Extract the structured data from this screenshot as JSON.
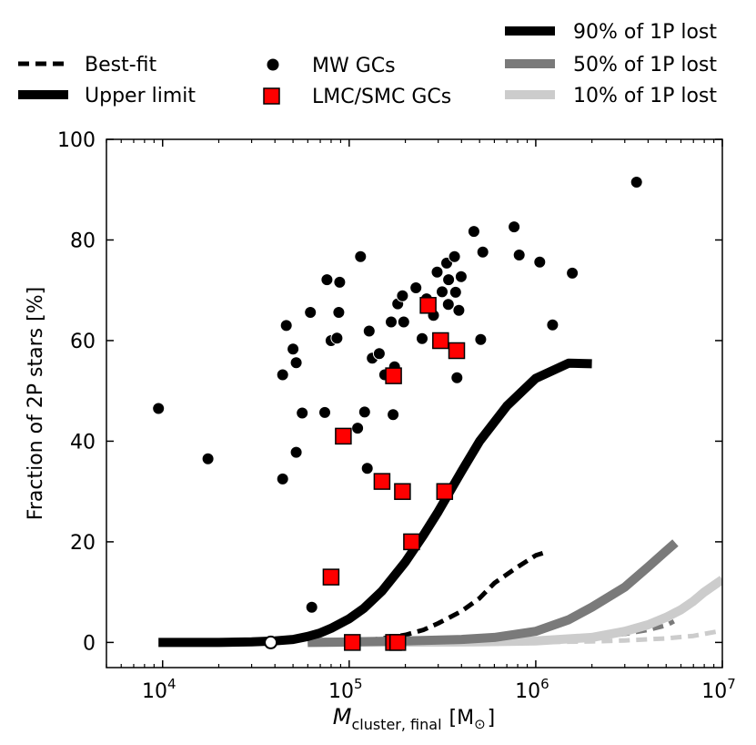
{
  "chart_data": {
    "type": "scatter",
    "xlabel_main": "M",
    "xlabel_sub": "cluster, final",
    "xlabel_unit_open": "[M",
    "xlabel_unit_sym": "⊙",
    "xlabel_unit_close": "]",
    "ylabel": "Fraction of 2P stars [%]",
    "xscale": "log",
    "xlim": [
      5000,
      10000000
    ],
    "ylim": [
      -5,
      100
    ],
    "yticks": [
      0,
      20,
      40,
      60,
      80,
      100
    ],
    "xticks": [
      {
        "value": 10000,
        "base": "10",
        "exp": "4"
      },
      {
        "value": 100000,
        "base": "10",
        "exp": "5"
      },
      {
        "value": 1000000,
        "base": "10",
        "exp": "6"
      },
      {
        "value": 10000000,
        "base": "10",
        "exp": "7"
      }
    ],
    "legend": {
      "style_entries": [
        {
          "label": "Best-fit",
          "linestyle": "dashed"
        },
        {
          "label": "Upper limit",
          "linestyle": "solid"
        }
      ],
      "marker_entries": [
        {
          "label": "MW GCs",
          "marker": "circle",
          "color": "#000000"
        },
        {
          "label": "LMC/SMC GCs",
          "marker": "square",
          "color": "#ff0000"
        }
      ],
      "color_entries": [
        {
          "label": "90% of 1P lost",
          "color": "#000000"
        },
        {
          "label": "50% of 1P lost",
          "color": "#7a7a7a"
        },
        {
          "label": "10% of 1P lost",
          "color": "#cccccc"
        }
      ]
    },
    "series": [
      {
        "name": "MW GCs",
        "marker": "circle",
        "color": "#000000",
        "points": [
          [
            9500,
            46.5
          ],
          [
            17500,
            36.5
          ],
          [
            38000,
            0
          ],
          [
            44000,
            32.5
          ],
          [
            44000,
            53.2
          ],
          [
            46000,
            63
          ],
          [
            50000,
            58.3
          ],
          [
            52000,
            55.6
          ],
          [
            52000,
            37.8
          ],
          [
            56000,
            45.6
          ],
          [
            62000,
            65.6
          ],
          [
            63000,
            7
          ],
          [
            74000,
            45.7
          ],
          [
            76000,
            72.1
          ],
          [
            80000,
            60
          ],
          [
            86000,
            60.5
          ],
          [
            88000,
            65.6
          ],
          [
            89000,
            71.6
          ],
          [
            111000,
            42.6
          ],
          [
            115000,
            76.7
          ],
          [
            121000,
            45.8
          ],
          [
            125000,
            34.6
          ],
          [
            128000,
            61.9
          ],
          [
            133000,
            56.5
          ],
          [
            145000,
            57.4
          ],
          [
            155000,
            53.2
          ],
          [
            168000,
            63.7
          ],
          [
            172000,
            45.3
          ],
          [
            175000,
            54.8
          ],
          [
            182000,
            67.3
          ],
          [
            193000,
            68.9
          ],
          [
            196000,
            63.7
          ],
          [
            228000,
            70.5
          ],
          [
            246000,
            60.4
          ],
          [
            260000,
            68.3
          ],
          [
            283000,
            65
          ],
          [
            296000,
            73.6
          ],
          [
            315000,
            69.7
          ],
          [
            333000,
            75.4
          ],
          [
            340000,
            67.2
          ],
          [
            341000,
            72.1
          ],
          [
            367000,
            76.7
          ],
          [
            372000,
            69.6
          ],
          [
            378000,
            52.6
          ],
          [
            387000,
            66
          ],
          [
            398000,
            72.7
          ],
          [
            466000,
            81.7
          ],
          [
            507000,
            60.2
          ],
          [
            520000,
            77.6
          ],
          [
            765000,
            82.6
          ],
          [
            815000,
            77
          ],
          [
            1050000,
            75.6
          ],
          [
            1230000,
            63.1
          ],
          [
            1570000,
            73.4
          ],
          [
            3470000,
            91.5
          ]
        ]
      },
      {
        "name": "LMC/SMC GCs",
        "marker": "square",
        "color": "#ff0000",
        "points": [
          [
            80000,
            13
          ],
          [
            93000,
            41
          ],
          [
            104000,
            0
          ],
          [
            150000,
            32
          ],
          [
            173000,
            53
          ],
          [
            173000,
            0
          ],
          [
            182000,
            0
          ],
          [
            193000,
            30
          ],
          [
            216000,
            20
          ],
          [
            265000,
            67
          ],
          [
            309000,
            60
          ],
          [
            325000,
            30
          ],
          [
            377000,
            58
          ]
        ]
      }
    ],
    "model_curves": [
      {
        "name": "90% of 1P lost",
        "type": "Upper limit",
        "color": "#000000",
        "points": [
          [
            9500,
            0
          ],
          [
            20000,
            0
          ],
          [
            30000,
            0.1
          ],
          [
            40000,
            0.3
          ],
          [
            50000,
            0.6
          ],
          [
            60000,
            1.2
          ],
          [
            70000,
            1.9
          ],
          [
            80000,
            2.8
          ],
          [
            100000,
            4.7
          ],
          [
            120000,
            6.8
          ],
          [
            150000,
            10.2
          ],
          [
            200000,
            16
          ],
          [
            250000,
            21.3
          ],
          [
            300000,
            26
          ],
          [
            400000,
            34
          ],
          [
            500000,
            40
          ],
          [
            700000,
            47
          ],
          [
            1000000,
            52.5
          ],
          [
            1500000,
            55.5
          ],
          [
            2000000,
            55.4
          ]
        ]
      },
      {
        "name": "90% of 1P lost",
        "type": "Best-fit",
        "color": "#000000",
        "points": [
          [
            100000,
            0.2
          ],
          [
            130000,
            0.5
          ],
          [
            160000,
            0.9
          ],
          [
            200000,
            1.5
          ],
          [
            250000,
            2.5
          ],
          [
            300000,
            3.8
          ],
          [
            400000,
            6.2
          ],
          [
            500000,
            8.8
          ],
          [
            600000,
            11.8
          ],
          [
            800000,
            15
          ],
          [
            1000000,
            17.3
          ],
          [
            1100000,
            17.8
          ]
        ]
      },
      {
        "name": "50% of 1P lost",
        "type": "Upper limit",
        "color": "#7a7a7a",
        "points": [
          [
            60000,
            0
          ],
          [
            100000,
            0.1
          ],
          [
            200000,
            0.3
          ],
          [
            400000,
            0.6
          ],
          [
            600000,
            1
          ],
          [
            1000000,
            2.2
          ],
          [
            1500000,
            4.5
          ],
          [
            2000000,
            7
          ],
          [
            3000000,
            11
          ],
          [
            4000000,
            15
          ],
          [
            5000000,
            18.2
          ],
          [
            5600000,
            19.8
          ]
        ]
      },
      {
        "name": "50% of 1P lost",
        "type": "Best-fit",
        "color": "#7a7a7a",
        "points": [
          [
            60000,
            0
          ],
          [
            200000,
            0.1
          ],
          [
            500000,
            0.2
          ],
          [
            1000000,
            0.4
          ],
          [
            2000000,
            1
          ],
          [
            3000000,
            1.7
          ],
          [
            4000000,
            2.5
          ],
          [
            5000000,
            3.4
          ],
          [
            5500000,
            4.2
          ]
        ]
      },
      {
        "name": "10% of 1P lost",
        "type": "Upper limit",
        "color": "#cccccc",
        "points": [
          [
            60000,
            0
          ],
          [
            200000,
            0.05
          ],
          [
            500000,
            0.1
          ],
          [
            1000000,
            0.3
          ],
          [
            2000000,
            1
          ],
          [
            3000000,
            2.2
          ],
          [
            4000000,
            3.5
          ],
          [
            5000000,
            5
          ],
          [
            6000000,
            6.5
          ],
          [
            7000000,
            8.2
          ],
          [
            8000000,
            10
          ],
          [
            10000000,
            12.5
          ]
        ]
      },
      {
        "name": "10% of 1P lost",
        "type": "Best-fit",
        "color": "#cccccc",
        "points": [
          [
            60000,
            0
          ],
          [
            500000,
            0
          ],
          [
            1000000,
            0.05
          ],
          [
            2000000,
            0.2
          ],
          [
            3000000,
            0.4
          ],
          [
            5000000,
            0.8
          ],
          [
            7000000,
            1.3
          ],
          [
            8000000,
            1.7
          ],
          [
            9500000,
            2.2
          ]
        ]
      }
    ]
  }
}
